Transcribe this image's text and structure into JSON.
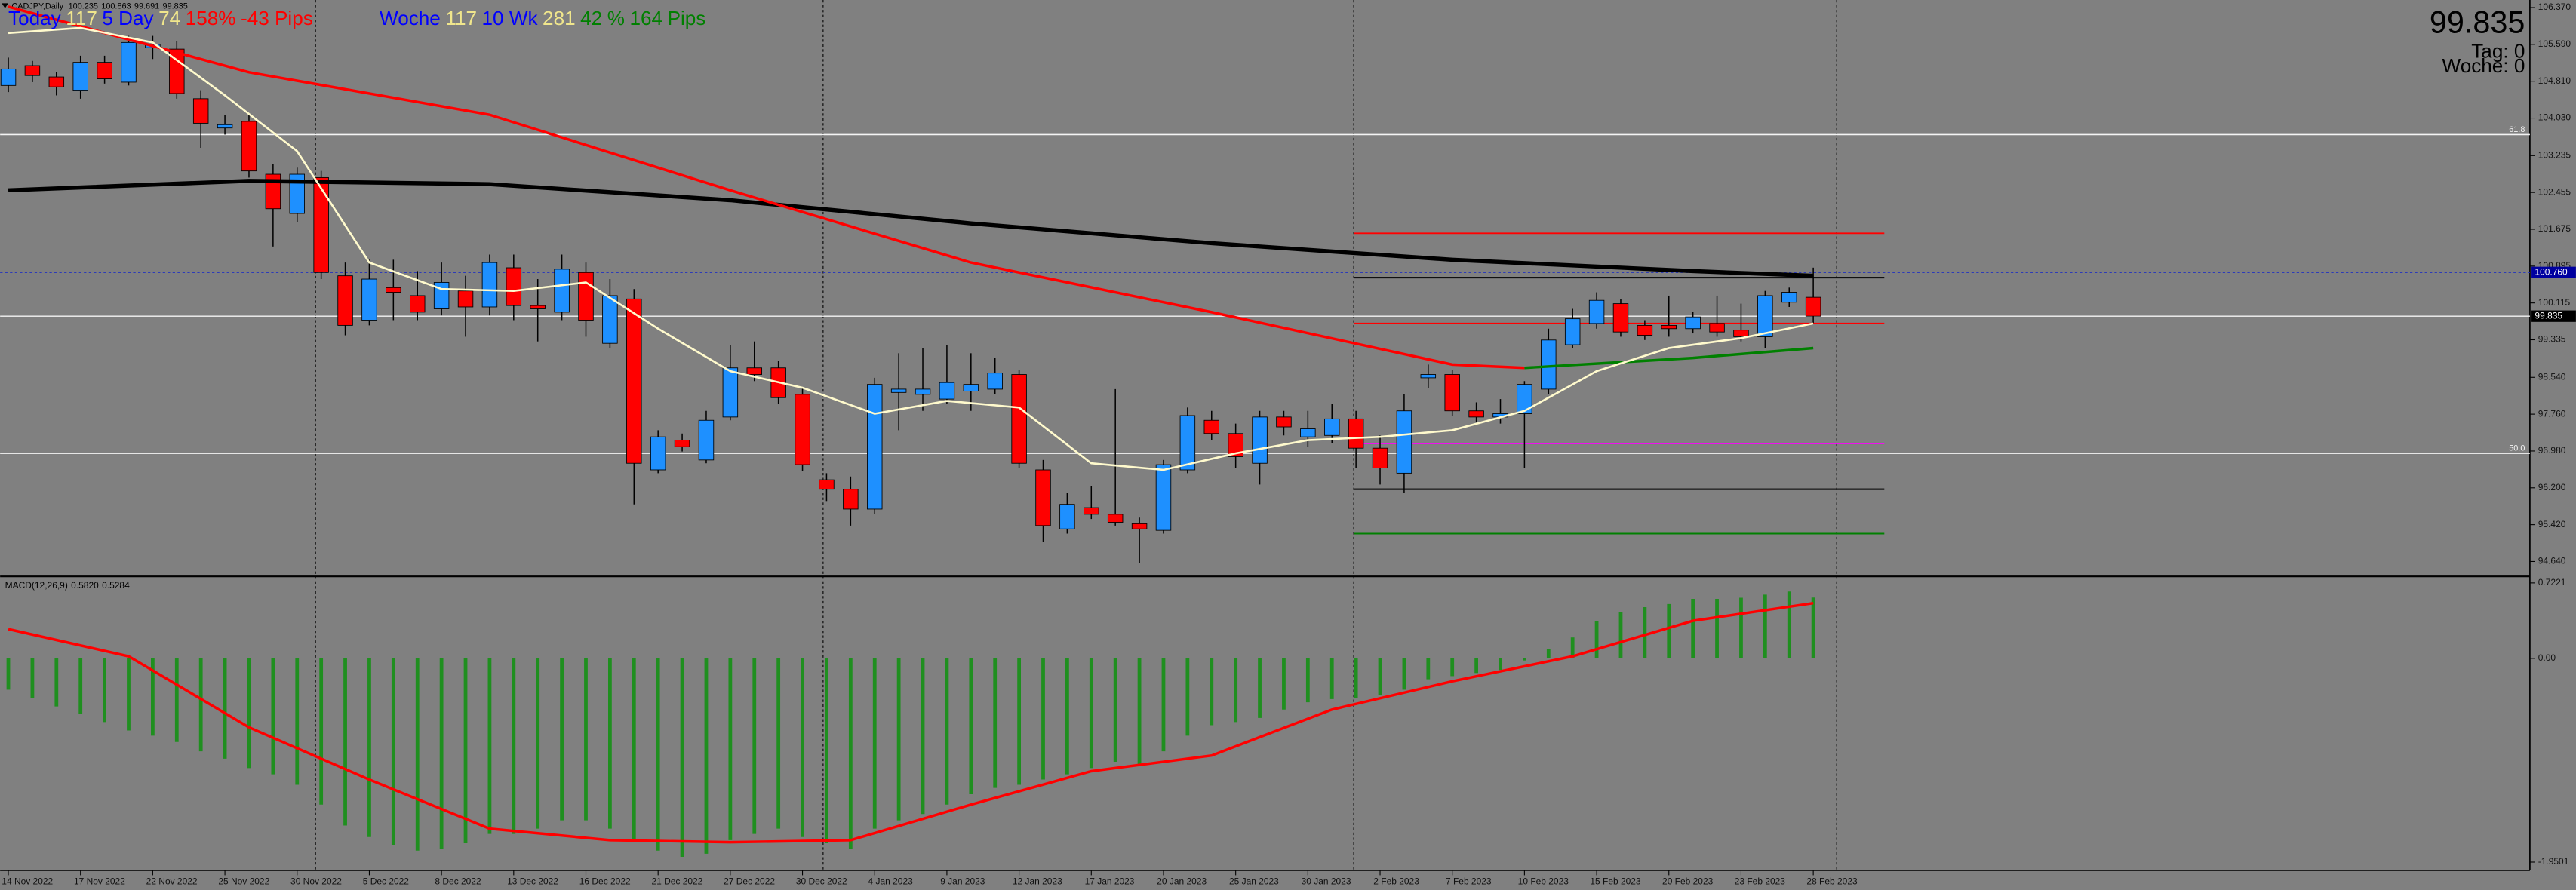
{
  "chart_data": {
    "type": "candlestick",
    "title": "CADJPY,Daily",
    "up_color": "#1e90ff",
    "down_color": "#ff0000",
    "categories": [
      "14 Nov 2022",
      null,
      null,
      "17 Nov 2022",
      null,
      null,
      "22 Nov 2022",
      null,
      null,
      "25 Nov 2022",
      null,
      null,
      "30 Nov 2022",
      null,
      null,
      "5 Dec 2022",
      null,
      null,
      "8 Dec 2022",
      null,
      null,
      "13 Dec 2022",
      null,
      null,
      "16 Dec 2022",
      null,
      null,
      "21 Dec 2022",
      null,
      null,
      "27 Dec 2022",
      null,
      null,
      "30 Dec 2022",
      null,
      null,
      "4 Jan 2023",
      null,
      null,
      "9 Jan 2023",
      null,
      null,
      "12 Jan 2023",
      null,
      null,
      "17 Jan 2023",
      null,
      null,
      "20 Jan 2023",
      null,
      null,
      "25 Jan 2023",
      null,
      null,
      "30 Jan 2023",
      null,
      null,
      "2 Feb 2023",
      null,
      null,
      "7 Feb 2023",
      null,
      null,
      "10 Feb 2023",
      null,
      null,
      "15 Feb 2023",
      null,
      null,
      "20 Feb 2023",
      null,
      null,
      "23 Feb 2023",
      null,
      null,
      "28 Feb 2023"
    ],
    "open": [
      104.72,
      105.14,
      104.9,
      104.62,
      105.21,
      104.79,
      105.52,
      105.49,
      104.44,
      103.82,
      103.96,
      102.84,
      102.01,
      102.77,
      100.69,
      99.75,
      100.44,
      100.27,
      99.99,
      100.37,
      100.03,
      100.86,
      100.06,
      99.92,
      100.76,
      99.26,
      100.2,
      96.58,
      97.21,
      96.79,
      97.7,
      98.74,
      98.74,
      98.18,
      96.37,
      96.17,
      95.75,
      98.22,
      98.18,
      98.08,
      98.25,
      98.29,
      98.6,
      96.58,
      95.33,
      95.78,
      95.64,
      95.44,
      95.3,
      96.58,
      97.63,
      97.35,
      96.72,
      97.7,
      97.28,
      97.31,
      97.66,
      97.04,
      96.51,
      98.53,
      98.6,
      97.83,
      97.7,
      97.77,
      98.29,
      99.23,
      99.68,
      100.1,
      99.64,
      99.64,
      99.57,
      99.68,
      99.54,
      99.4,
      100.13,
      100.235
    ],
    "high": [
      105.31,
      105.24,
      105.0,
      105.35,
      105.35,
      105.77,
      105.77,
      105.66,
      104.62,
      104.1,
      104.1,
      103.05,
      102.98,
      102.91,
      100.97,
      101.03,
      101.03,
      100.79,
      100.97,
      100.69,
      101.14,
      101.14,
      100.62,
      101.14,
      100.97,
      100.62,
      100.41,
      97.42,
      97.35,
      97.83,
      99.23,
      99.3,
      98.88,
      98.32,
      96.51,
      96.44,
      98.53,
      99.05,
      99.16,
      99.23,
      99.05,
      98.95,
      98.7,
      96.79,
      96.1,
      96.24,
      98.29,
      95.57,
      96.79,
      97.9,
      97.83,
      97.56,
      97.83,
      97.83,
      97.83,
      97.97,
      97.83,
      97.31,
      98.18,
      98.81,
      98.7,
      98.01,
      98.08,
      98.46,
      99.57,
      99.99,
      100.34,
      100.2,
      99.75,
      100.27,
      99.92,
      100.27,
      100.1,
      100.37,
      100.44,
      100.863
    ],
    "low": [
      104.58,
      104.79,
      104.51,
      104.44,
      104.76,
      104.72,
      105.28,
      104.44,
      103.4,
      103.68,
      102.77,
      101.31,
      101.83,
      100.62,
      99.43,
      99.64,
      99.75,
      99.75,
      99.85,
      99.4,
      99.85,
      99.75,
      99.3,
      99.75,
      99.4,
      99.16,
      95.85,
      96.51,
      96.97,
      96.72,
      97.63,
      98.46,
      97.97,
      96.55,
      95.92,
      95.4,
      95.64,
      97.42,
      97.83,
      97.97,
      97.83,
      98.18,
      96.62,
      95.05,
      95.23,
      95.54,
      95.4,
      94.6,
      95.23,
      96.51,
      97.21,
      96.62,
      96.27,
      97.31,
      97.07,
      97.14,
      96.62,
      96.27,
      96.1,
      98.32,
      97.73,
      97.59,
      97.56,
      96.62,
      98.18,
      99.16,
      99.57,
      99.4,
      99.33,
      99.4,
      99.47,
      99.4,
      99.3,
      99.16,
      100.03,
      99.691
    ],
    "close": [
      105.07,
      104.93,
      104.69,
      105.21,
      104.86,
      105.63,
      105.59,
      104.55,
      103.92,
      103.89,
      102.91,
      102.11,
      102.84,
      100.76,
      99.64,
      100.62,
      100.34,
      99.92,
      100.55,
      100.03,
      100.97,
      100.06,
      99.99,
      100.83,
      99.75,
      100.27,
      96.72,
      97.28,
      97.07,
      97.63,
      98.74,
      98.6,
      98.11,
      96.69,
      96.17,
      95.75,
      98.39,
      98.29,
      98.29,
      98.43,
      98.39,
      98.63,
      96.72,
      95.4,
      95.85,
      95.64,
      95.47,
      95.33,
      96.69,
      97.73,
      97.35,
      96.86,
      97.7,
      97.49,
      97.45,
      97.66,
      97.04,
      96.62,
      97.83,
      98.6,
      97.83,
      97.7,
      97.77,
      98.39,
      99.33,
      99.78,
      100.17,
      99.5,
      99.43,
      99.57,
      99.82,
      99.5,
      99.4,
      100.27,
      100.34,
      99.835
    ],
    "ylim": [
      94.36,
      106.53
    ],
    "yticks": [
      {
        "value": 106.37,
        "label": "106.370"
      },
      {
        "value": 105.59,
        "label": "105.590"
      },
      {
        "value": 104.81,
        "label": "104.810"
      },
      {
        "value": 104.03,
        "label": "104.030"
      },
      103.235,
      102.455,
      101.675,
      100.895,
      100.115,
      99.335,
      {
        "value": 98.54,
        "label": "98.540"
      },
      {
        "value": 97.76,
        "label": "97.760"
      },
      {
        "value": 96.98,
        "label": "96.980"
      },
      {
        "value": 96.2,
        "label": "96.200"
      },
      {
        "value": 95.42,
        "label": "95.420"
      },
      {
        "value": 94.64,
        "label": "94.640"
      }
    ],
    "series": [
      {
        "color": "#000000",
        "width": 2.5,
        "x": [
          0,
          10,
          20,
          30,
          40,
          50,
          60,
          70,
          75
        ],
        "values": [
          102.5,
          102.7,
          102.63,
          102.29,
          101.8,
          101.38,
          101.03,
          100.79,
          100.69
        ]
      },
      {
        "color": "#ff0000",
        "width": 1.6,
        "x": [
          0,
          10,
          20,
          30,
          40,
          50,
          60,
          63
        ],
        "values": [
          106.39,
          105.0,
          104.1,
          102.5,
          100.97,
          99.92,
          98.81,
          98.74
        ]
      },
      {
        "color": "#008000",
        "width": 1.6,
        "x": [
          63,
          70,
          75
        ],
        "values": [
          98.74,
          98.95,
          99.16
        ]
      },
      {
        "color": "#fffacd",
        "width": 1.2,
        "x": [
          0,
          3,
          6,
          9,
          12,
          15,
          18,
          21,
          24,
          27,
          30,
          33,
          36,
          39,
          42,
          45,
          48,
          51,
          54,
          57,
          60,
          63,
          66,
          69,
          72,
          75
        ],
        "values": [
          105.83,
          105.94,
          105.63,
          104.51,
          103.33,
          100.97,
          100.41,
          100.37,
          100.55,
          99.57,
          98.67,
          98.32,
          97.77,
          98.04,
          97.9,
          96.72,
          96.58,
          96.93,
          97.21,
          97.28,
          97.42,
          97.83,
          98.67,
          99.16,
          99.37,
          99.68
        ]
      }
    ],
    "fib_levels": [
      {
        "label": "61.8",
        "value": 103.68
      },
      {
        "label": "50.0",
        "value": 96.93
      }
    ],
    "levels": [
      {
        "value": 101.59,
        "color": "#ff0000"
      },
      {
        "value": 100.65,
        "color": "#000000"
      },
      {
        "value": 99.68,
        "color": "#ff0000"
      },
      {
        "value": 97.14,
        "color": "#ff00ff"
      },
      {
        "value": 96.17,
        "color": "#000000"
      },
      {
        "value": 95.23,
        "color": "#008000"
      }
    ],
    "ask": {
      "value": 100.76,
      "label": "100.760",
      "color": "#0000a0"
    },
    "stats_day": [
      {
        "text": "Today",
        "color": "#0000ff"
      },
      {
        "text": "117",
        "color": "#f0e68c"
      },
      {
        "text": "5 Day",
        "color": "#0000ff"
      },
      {
        "text": "74",
        "color": "#f0e68c"
      },
      {
        "text": "158%",
        "color": "#ff0000"
      },
      {
        "text": "-43 Pips",
        "color": "#ff0000"
      }
    ],
    "stats_week": [
      {
        "text": "Woche",
        "color": "#0000ff"
      },
      {
        "text": "117",
        "color": "#f0e68c"
      },
      {
        "text": "10 Wk",
        "color": "#0000ff"
      },
      {
        "text": "281",
        "color": "#f0e68c"
      },
      {
        "text": "42",
        "color": "#008000"
      },
      {
        "text": "%",
        "color": "#008000"
      },
      {
        "text": "164",
        "color": "#008000"
      },
      {
        "text": "Pips",
        "color": "#008000"
      }
    ],
    "info": [
      "Tag: 0",
      "Woche: 0"
    ],
    "macd": {
      "title": "MACD(12,26,9)",
      "legend": [
        {
          "value": 0.582,
          "label": "0.5820"
        },
        0.5284
      ],
      "ylim": [
        -1.9501,
        0.7221
      ],
      "yticks": [
        0.7221,
        {
          "value": 0,
          "label": "0.00"
        },
        -1.9501
      ],
      "color": "#1f8f1f",
      "values": [
        -0.3,
        -0.38,
        -0.46,
        -0.53,
        -0.61,
        -0.69,
        -0.74,
        -0.8,
        -0.89,
        -0.96,
        -1.05,
        -1.11,
        -1.21,
        -1.4,
        -1.6,
        -1.71,
        -1.79,
        -1.84,
        -1.82,
        -1.77,
        -1.68,
        -1.68,
        -1.63,
        -1.55,
        -1.55,
        -1.63,
        -1.74,
        -1.84,
        -1.9,
        -1.87,
        -1.74,
        -1.68,
        -1.63,
        -1.71,
        -1.77,
        -1.82,
        -1.63,
        -1.55,
        -1.49,
        -1.4,
        -1.3,
        -1.24,
        -1.21,
        -1.16,
        -1.11,
        -1.05,
        -0.99,
        -1.02,
        -0.89,
        -0.74,
        -0.64,
        -0.61,
        -0.57,
        -0.49,
        -0.42,
        -0.39,
        -0.38,
        -0.35,
        -0.3,
        -0.2,
        -0.17,
        -0.14,
        -0.11,
        -0.02,
        0.09,
        0.2,
        0.36,
        0.44,
        0.49,
        0.52,
        0.57,
        0.57,
        0.58,
        0.61,
        0.64,
        0.582
      ],
      "signal": {
        "color": "#ff0000",
        "x": [
          0,
          5,
          10,
          15,
          20,
          25,
          30,
          35,
          40,
          45,
          50,
          55,
          60,
          65,
          70,
          75
        ],
        "values": [
          0.28,
          0.02,
          -0.66,
          -1.16,
          -1.63,
          -1.74,
          -1.76,
          -1.74,
          -1.4,
          -1.08,
          -0.93,
          -0.49,
          -0.22,
          0.02,
          0.36,
          0.5284
        ]
      }
    }
  }
}
